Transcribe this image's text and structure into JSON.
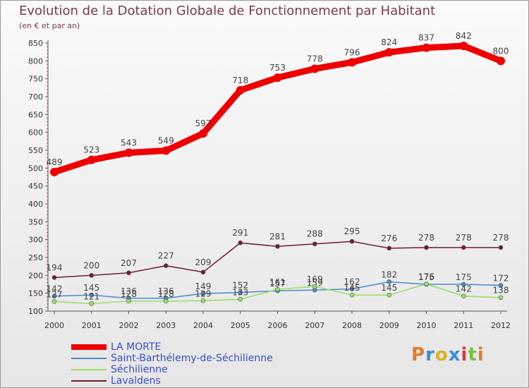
{
  "chart_data": {
    "type": "line",
    "title": "Evolution de la Dotation Globale de Fonctionnement par Habitant",
    "subtitle": "(en € et par an)",
    "xlabel": "",
    "ylabel": "",
    "x": [
      "2000",
      "2001",
      "2002",
      "2003",
      "2004",
      "2005",
      "2006",
      "2007",
      "2008",
      "2009",
      "2010",
      "2011",
      "2012"
    ],
    "ylim": [
      100,
      850
    ],
    "yticks": [
      100,
      150,
      200,
      250,
      300,
      350,
      400,
      450,
      500,
      550,
      600,
      650,
      700,
      750,
      800,
      850
    ],
    "grid": false,
    "legend_position": "bottom-left",
    "series": [
      {
        "name": "LA MORTE",
        "color": "#ee0000",
        "values": [
          489,
          523,
          543,
          549,
          597,
          718,
          753,
          778,
          796,
          824,
          837,
          842,
          800
        ],
        "labels": [
          "489",
          "523",
          "543",
          "549",
          "597",
          "718",
          "753",
          "778",
          "796",
          "824",
          "837",
          "842",
          "800"
        ]
      },
      {
        "name": "Saint-Barthélemy-de-Séchilienne",
        "color": "#4a8cc8",
        "values": [
          142,
          145,
          136,
          136,
          149,
          152,
          157,
          159,
          162,
          182,
          175,
          175,
          172
        ],
        "labels": [
          "142",
          "145",
          "136",
          "136",
          "149",
          "152",
          "157",
          "159",
          "162",
          "182",
          "175",
          "175",
          "172"
        ]
      },
      {
        "name": "Séchilienne",
        "color": "#99dd66",
        "values": [
          127,
          121,
          128,
          128,
          129,
          133,
          161,
          169,
          145,
          145,
          176,
          142,
          138
        ],
        "labels": [
          "127",
          "121",
          "128",
          "128",
          "129",
          "133",
          "161",
          "169",
          "145",
          "145",
          "176",
          "142",
          "138"
        ]
      },
      {
        "name": "Lavaldens",
        "color": "#6e1f2e",
        "values": [
          194,
          200,
          207,
          227,
          209,
          291,
          281,
          288,
          295,
          276,
          278,
          278,
          278
        ],
        "labels": [
          "194",
          "200",
          "207",
          "227",
          "209",
          "291",
          "281",
          "288",
          "295",
          "276",
          "278",
          "278",
          "278"
        ]
      }
    ]
  },
  "logo": {
    "letters": [
      "P",
      "r",
      "o",
      "x",
      "i",
      "t",
      "i"
    ],
    "colors": [
      "#e07b2a",
      "#3a8fd6",
      "#e0b020",
      "#3a8fd6",
      "#d63a3a",
      "#7ac043",
      "#e07b2a"
    ]
  }
}
